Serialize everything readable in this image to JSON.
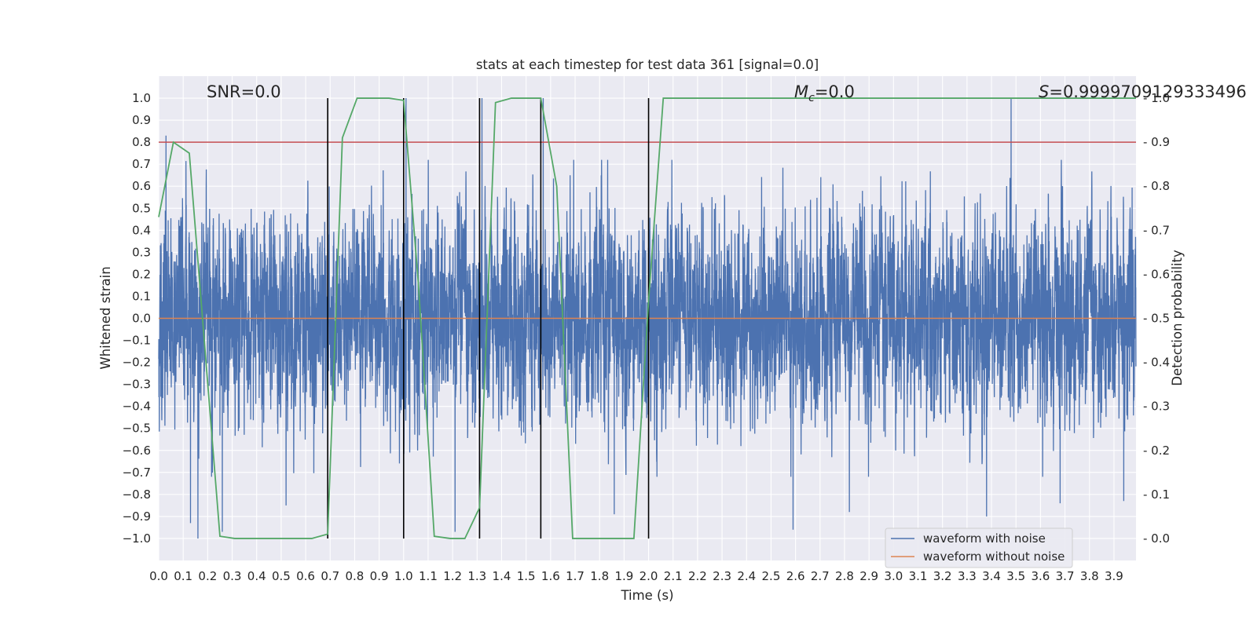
{
  "chart_data": {
    "type": "line",
    "title": "stats at each timestep for test data 361 [signal=0.0]",
    "xlabel": "Time (s)",
    "ylabel": "Whitened strain",
    "ylabel_right": "Detection probability",
    "xlim": [
      0.0,
      3.99
    ],
    "ylim": [
      -1.1,
      1.1
    ],
    "ylim_right": [
      -0.05,
      1.05
    ],
    "grid": true,
    "legend_placement": "lower-right",
    "colors": {
      "background": "#EAEAF2",
      "noise": "#4C72B0",
      "clean": "#DD8452",
      "probability": "#55A868",
      "threshold": "#C44E52",
      "markers": "#000000"
    },
    "x_ticks": [
      "0.0",
      "0.1",
      "0.2",
      "0.3",
      "0.4",
      "0.5",
      "0.6",
      "0.7",
      "0.8",
      "0.9",
      "1.0",
      "1.1",
      "1.2",
      "1.3",
      "1.4",
      "1.5",
      "1.6",
      "1.7",
      "1.8",
      "1.9",
      "2.0",
      "2.1",
      "2.2",
      "2.3",
      "2.4",
      "2.5",
      "2.6",
      "2.7",
      "2.8",
      "2.9",
      "3.0",
      "3.1",
      "3.2",
      "3.3",
      "3.4",
      "3.5",
      "3.6",
      "3.7",
      "3.8",
      "3.9"
    ],
    "y_ticks": [
      "1.0",
      "0.9",
      "0.8",
      "0.7",
      "0.6",
      "0.5",
      "0.4",
      "0.3",
      "0.2",
      "0.1",
      "0.0",
      "−0.1",
      "−0.2",
      "−0.3",
      "−0.4",
      "−0.5",
      "−0.6",
      "−0.7",
      "−0.8",
      "−0.9",
      "−1.0"
    ],
    "y_right_ticks": [
      "1.0",
      "0.9",
      "0.8",
      "0.7",
      "0.6",
      "0.5",
      "0.4",
      "0.3",
      "0.2",
      "0.1",
      "0.0"
    ],
    "annotations": {
      "snr": "SNR=0.0",
      "mc_symbol": "M",
      "mc_sub": "c",
      "mc_value": "=0.0",
      "s_symbol": "S",
      "s_value": "=0.9999709129333496"
    },
    "legend": {
      "entries": [
        {
          "label": "waveform with noise",
          "color": "#4C72B0"
        },
        {
          "label": "waveform without noise",
          "color": "#DD8452"
        }
      ]
    },
    "series": [
      {
        "name": "waveform with noise",
        "axis": "left",
        "color": "#4C72B0",
        "kind": "noise",
        "sample_rate": 2048,
        "duration": 4.0,
        "envelope": 0.42,
        "peaks": [
          {
            "x": 0.03,
            "y": 0.83
          },
          {
            "x": 0.13,
            "y": -0.93
          },
          {
            "x": 0.16,
            "y": -1.0
          },
          {
            "x": 0.26,
            "y": 0.81
          },
          {
            "x": 0.26,
            "y": -0.97
          },
          {
            "x": 0.52,
            "y": -0.85
          },
          {
            "x": 1.01,
            "y": 1.0
          },
          {
            "x": 1.21,
            "y": -0.97
          },
          {
            "x": 1.32,
            "y": 1.0
          },
          {
            "x": 1.57,
            "y": 1.0
          },
          {
            "x": 1.86,
            "y": -0.89
          },
          {
            "x": 2.59,
            "y": -0.96
          },
          {
            "x": 2.82,
            "y": -0.88
          },
          {
            "x": 3.38,
            "y": -0.9
          },
          {
            "x": 3.48,
            "y": 1.0
          },
          {
            "x": 3.68,
            "y": -0.84
          },
          {
            "x": 3.94,
            "y": -0.83
          }
        ]
      },
      {
        "name": "waveform without noise",
        "axis": "left",
        "color": "#DD8452",
        "x": [
          0.0,
          3.99
        ],
        "y": [
          0.0,
          0.0
        ]
      },
      {
        "name": "",
        "axis": "right",
        "color": "#55A868",
        "x": [
          0.0,
          0.06,
          0.125,
          0.25,
          0.31,
          0.375,
          0.44,
          0.5,
          0.56,
          0.625,
          0.69,
          0.75,
          0.81,
          0.875,
          0.94,
          1.0,
          1.06,
          1.125,
          1.19,
          1.25,
          1.31,
          1.375,
          1.44,
          1.5,
          1.56,
          1.625,
          1.69,
          1.75,
          1.81,
          1.875,
          1.94,
          2.0,
          2.06,
          2.125,
          2.5,
          3.0,
          3.5,
          3.99
        ],
        "y": [
          0.73,
          0.9,
          0.875,
          0.005,
          0.0,
          0.0,
          0.0,
          0.0,
          0.0,
          0.0,
          0.01,
          0.91,
          1.0,
          1.0,
          1.0,
          0.995,
          0.58,
          0.005,
          0.0,
          0.0,
          0.07,
          0.99,
          1.0,
          1.0,
          1.0,
          0.8,
          0.0,
          0.0,
          0.0,
          0.0,
          0.0,
          0.54,
          1.0,
          1.0,
          1.0,
          1.0,
          1.0,
          1.0
        ]
      }
    ],
    "threshold": {
      "axis": "right",
      "y": 0.9,
      "color": "#C44E52"
    },
    "event_markers": {
      "x": [
        0.69,
        1.0,
        1.31,
        1.56,
        2.0
      ],
      "y_range": [
        -1.0,
        1.0
      ],
      "color": "#000000"
    }
  }
}
